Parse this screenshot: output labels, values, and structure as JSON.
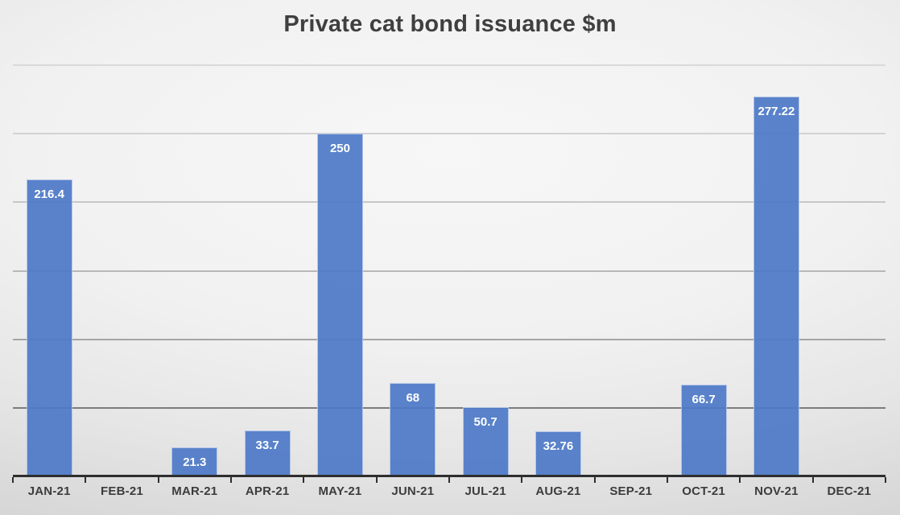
{
  "title": "Private cat bond issuance $m",
  "chart_data": {
    "type": "bar",
    "title": "Private cat bond issuance $m",
    "categories": [
      "JAN-21",
      "FEB-21",
      "MAR-21",
      "APR-21",
      "MAY-21",
      "JUN-21",
      "JUL-21",
      "AUG-21",
      "SEP-21",
      "OCT-21",
      "NOV-21",
      "DEC-21"
    ],
    "values": [
      216.4,
      null,
      21.3,
      33.7,
      250,
      68,
      50.7,
      32.76,
      null,
      66.7,
      277.22,
      null
    ],
    "data_labels": [
      "216.4",
      "",
      "21.3",
      "33.7",
      "250",
      "68",
      "50.7",
      "32.76",
      "",
      "66.7",
      "277.22",
      ""
    ],
    "xlabel": "",
    "ylabel": "",
    "ylim": [
      0,
      300
    ],
    "gridline_interval": 50,
    "grid": "horizontal",
    "legend": "none",
    "bar_color": "#4e7ac7",
    "bar_border_color": "rgba(255,255,255,0.55)",
    "data_label_color": "#ffffff",
    "axis_color": "#2e2e2e",
    "tick_label_color": "#3c3c3c",
    "title_color": "#3f3f3f",
    "gridlines": [
      {
        "value": 50,
        "color": "#7c7c7c"
      },
      {
        "value": 100,
        "color": "#a5a5a5"
      },
      {
        "value": 150,
        "color": "#b8b8b8"
      },
      {
        "value": 200,
        "color": "#c7c7c7"
      },
      {
        "value": 250,
        "color": "#d2d2d2"
      },
      {
        "value": 300,
        "color": "#d9d9d9"
      }
    ]
  }
}
